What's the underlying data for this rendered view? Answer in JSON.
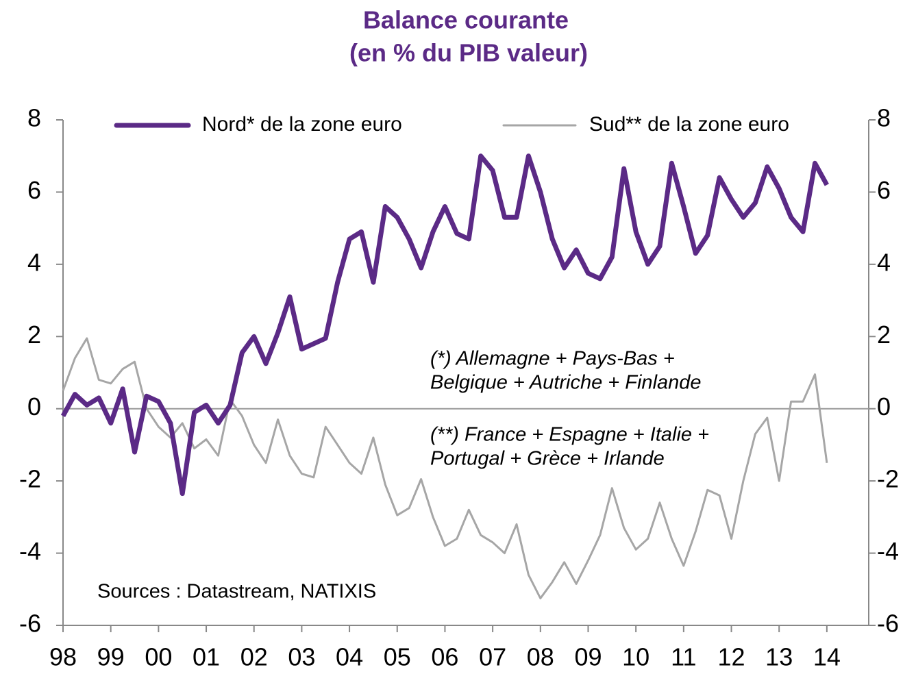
{
  "chart_data": {
    "type": "line",
    "title": [
      "Balance courante",
      "(en % du PIB valeur)"
    ],
    "categories": [
      "98",
      null,
      null,
      null,
      "99",
      null,
      null,
      null,
      "00",
      null,
      null,
      null,
      "01",
      null,
      null,
      null,
      "02",
      null,
      null,
      null,
      "03",
      null,
      null,
      null,
      "04",
      null,
      null,
      null,
      "05",
      null,
      null,
      null,
      "06",
      null,
      null,
      null,
      "07",
      null,
      null,
      null,
      "08",
      null,
      null,
      null,
      "09",
      null,
      null,
      null,
      "10",
      null,
      null,
      null,
      "11",
      null,
      null,
      null,
      "12",
      null,
      null,
      null,
      "13",
      null,
      null,
      null,
      "14"
    ],
    "series": [
      {
        "name": "Nord* de la zone euro",
        "color": "#5b2a86",
        "values": [
          -0.2,
          0.4,
          0.1,
          0.3,
          -0.4,
          0.55,
          -1.2,
          0.35,
          0.2,
          -0.4,
          -2.35,
          -0.1,
          0.1,
          -0.4,
          0.1,
          1.55,
          2.0,
          1.25,
          2.1,
          3.1,
          1.65,
          1.8,
          1.95,
          3.5,
          4.7,
          4.9,
          3.5,
          5.6,
          5.3,
          4.7,
          3.9,
          4.9,
          5.6,
          4.85,
          4.7,
          7.0,
          6.6,
          5.3,
          5.3,
          7.0,
          6.0,
          4.7,
          3.9,
          4.4,
          3.75,
          3.6,
          4.2,
          6.65,
          4.9,
          4.0,
          4.5,
          6.8,
          5.6,
          4.3,
          4.8,
          6.4,
          5.8,
          5.3,
          5.7,
          6.7,
          6.1,
          5.3,
          4.9,
          6.8,
          6.2
        ]
      },
      {
        "name": "Sud** de la zone euro",
        "color": "#a6a6a6",
        "values": [
          0.5,
          1.4,
          1.95,
          0.8,
          0.7,
          1.1,
          1.3,
          0.0,
          -0.5,
          -0.8,
          -0.4,
          -1.1,
          -0.85,
          -1.3,
          0.25,
          -0.2,
          -1.0,
          -1.5,
          -0.3,
          -1.3,
          -1.8,
          -1.9,
          -0.5,
          -1.0,
          -1.5,
          -1.8,
          -0.8,
          -2.1,
          -2.95,
          -2.75,
          -1.95,
          -3.0,
          -3.8,
          -3.6,
          -2.8,
          -3.5,
          -3.7,
          -4.0,
          -3.2,
          -4.6,
          -5.25,
          -4.8,
          -4.25,
          -4.85,
          -4.2,
          -3.5,
          -2.2,
          -3.3,
          -3.9,
          -3.6,
          -2.6,
          -3.6,
          -4.35,
          -3.4,
          -2.25,
          -2.4,
          -3.6,
          -2.0,
          -0.7,
          -0.25,
          -2.0,
          0.2,
          0.2,
          0.95,
          -1.5
        ]
      }
    ],
    "ylim": [
      -6,
      8
    ],
    "yticks": [
      -6,
      -4,
      -2,
      0,
      2,
      4,
      6,
      8
    ],
    "y2lim": [
      -6,
      8
    ],
    "y2ticks": [
      -6,
      -4,
      -2,
      0,
      2,
      4,
      6,
      8
    ],
    "annotations": [
      [
        "(*) Allemagne + Pays-Bas +",
        "Belgique + Autriche + Finlande"
      ],
      [
        "(**) France + Espagne + Italie +",
        "Portugal + Grèce + Irlande"
      ]
    ],
    "source": "Sources : Datastream, NATIXIS"
  }
}
